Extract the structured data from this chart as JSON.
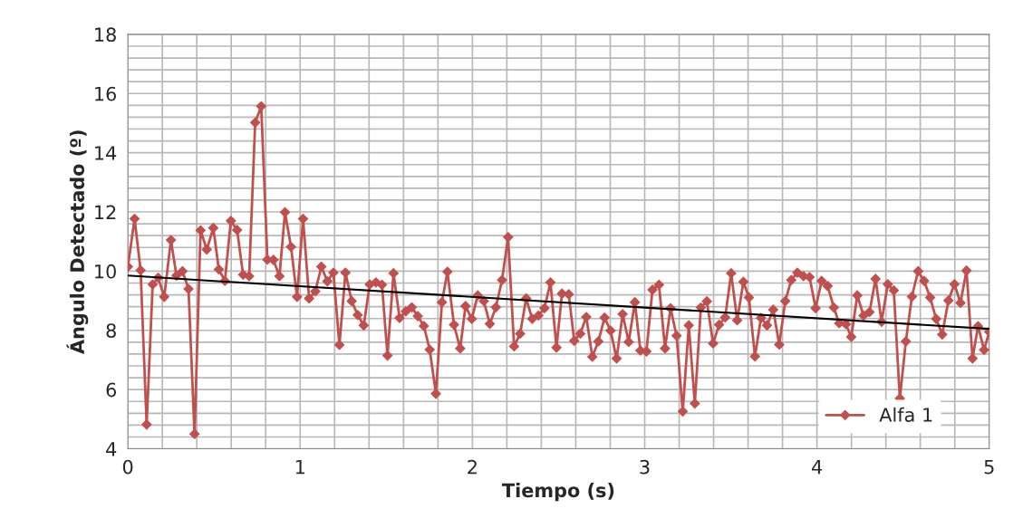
{
  "chart_data": {
    "type": "line",
    "xlabel": "Tiempo (s)",
    "ylabel": "Ángulo Detectado (º)",
    "xlim": [
      0,
      5
    ],
    "xticks": [
      0,
      1,
      2,
      3,
      4,
      5
    ],
    "ylim": [
      4,
      18
    ],
    "yticks": [
      4,
      6,
      8,
      10,
      12,
      14,
      16,
      18
    ],
    "grid": true,
    "legend": "bottom right",
    "series": [
      {
        "name": "Alfa 1",
        "color": "#c0504d",
        "marker": "diamond",
        "line_style": "solid",
        "x": [
          0.0,
          0.039,
          0.074,
          0.109,
          0.144,
          0.176,
          0.211,
          0.25,
          0.282,
          0.317,
          0.352,
          0.387,
          0.422,
          0.458,
          0.496,
          0.528,
          0.563,
          0.598,
          0.634,
          0.669,
          0.704,
          0.739,
          0.774,
          0.81,
          0.845,
          0.88,
          0.912,
          0.947,
          0.982,
          1.017,
          1.052,
          1.088,
          1.123,
          1.158,
          1.193,
          1.228,
          1.263,
          1.299,
          1.334,
          1.369,
          1.404,
          1.44,
          1.475,
          1.507,
          1.542,
          1.577,
          1.613,
          1.648,
          1.683,
          1.718,
          1.752,
          1.788,
          1.823,
          1.855,
          1.893,
          1.929,
          1.96,
          1.996,
          2.031,
          2.066,
          2.101,
          2.136,
          2.172,
          2.207,
          2.242,
          2.277,
          2.312,
          2.347,
          2.383,
          2.418,
          2.453,
          2.488,
          2.52,
          2.559,
          2.591,
          2.626,
          2.661,
          2.696,
          2.731,
          2.767,
          2.802,
          2.837,
          2.872,
          2.907,
          2.943,
          2.975,
          3.01,
          3.045,
          3.083,
          3.118,
          3.15,
          3.185,
          3.221,
          3.256,
          3.291,
          3.326,
          3.361,
          3.397,
          3.432,
          3.467,
          3.502,
          3.537,
          3.573,
          3.605,
          3.64,
          3.675,
          3.71,
          3.746,
          3.781,
          3.816,
          3.851,
          3.886,
          3.922,
          3.957,
          3.992,
          4.027,
          4.062,
          4.098,
          4.129,
          4.168,
          4.199,
          4.234,
          4.27,
          4.305,
          4.34,
          4.375,
          4.411,
          4.446,
          4.481,
          4.516,
          4.551,
          4.587,
          4.622,
          4.657,
          4.692,
          4.727,
          4.763,
          4.798,
          4.833,
          4.868,
          4.903,
          4.935,
          4.97,
          5.0
        ],
        "values": [
          10.15,
          11.77,
          10.03,
          4.82,
          9.55,
          9.78,
          9.13,
          11.05,
          9.85,
          10.0,
          9.4,
          4.5,
          11.38,
          10.73,
          11.46,
          10.06,
          9.67,
          11.7,
          11.39,
          9.88,
          9.83,
          15.02,
          15.57,
          10.39,
          10.38,
          9.83,
          11.99,
          10.82,
          9.13,
          11.77,
          9.08,
          9.32,
          10.15,
          9.66,
          9.95,
          7.51,
          9.95,
          8.99,
          8.52,
          8.17,
          9.55,
          9.62,
          9.54,
          7.15,
          9.93,
          8.42,
          8.64,
          8.78,
          8.48,
          8.15,
          7.35,
          5.86,
          8.95,
          9.98,
          8.19,
          7.39,
          8.82,
          8.39,
          9.18,
          8.99,
          8.22,
          8.78,
          9.7,
          11.15,
          7.46,
          7.89,
          9.08,
          8.39,
          8.5,
          8.75,
          9.62,
          7.42,
          9.24,
          9.22,
          7.65,
          7.89,
          8.45,
          7.11,
          7.63,
          8.43,
          7.99,
          7.05,
          8.55,
          7.61,
          8.95,
          7.32,
          7.29,
          9.37,
          9.54,
          7.39,
          8.75,
          7.82,
          5.26,
          8.17,
          5.53,
          8.77,
          8.98,
          7.56,
          8.19,
          8.44,
          9.93,
          8.34,
          9.64,
          9.11,
          7.12,
          8.42,
          8.17,
          8.7,
          7.52,
          8.99,
          9.7,
          9.95,
          9.83,
          9.8,
          8.75,
          9.67,
          9.5,
          8.77,
          8.24,
          8.21,
          7.78,
          9.18,
          8.5,
          8.62,
          9.74,
          8.29,
          9.56,
          9.35,
          5.7,
          7.63,
          9.14,
          10.0,
          9.67,
          9.11,
          8.39,
          7.86,
          9.01,
          9.56,
          8.93,
          10.02,
          7.05,
          8.14,
          7.34,
          7.95
        ]
      },
      {
        "color": "#000000",
        "marker": "none",
        "line_style": "solid",
        "x": [
          0,
          5
        ],
        "values": [
          9.85,
          8.05
        ]
      }
    ]
  }
}
